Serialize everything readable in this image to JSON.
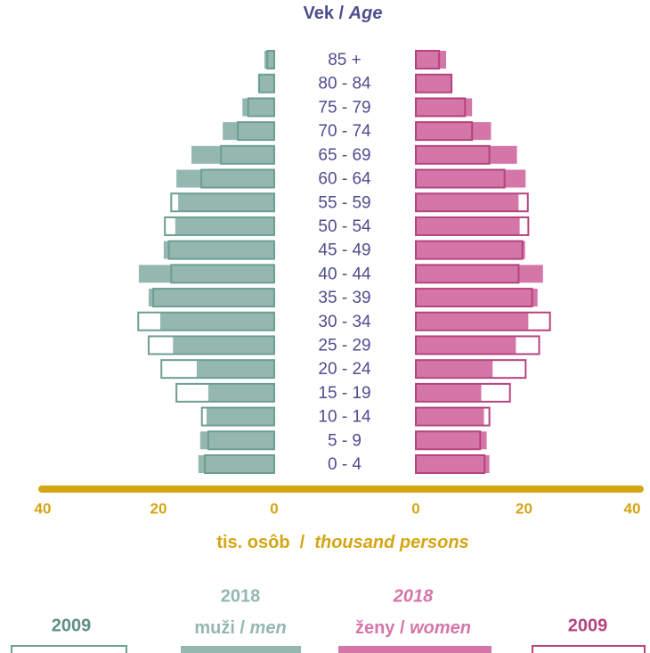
{
  "chart_data": {
    "type": "population_pyramid",
    "title": [
      "Vek / ",
      "Age"
    ],
    "categories": [
      "0 - 4",
      "5 - 9",
      "10 - 14",
      "15 - 19",
      "20 - 24",
      "25 - 29",
      "30 - 34",
      "35 - 39",
      "40 - 44",
      "45 - 49",
      "50 - 54",
      "55 - 59",
      "60 - 64",
      "65 - 69",
      "70 - 74",
      "75 - 79",
      "80 - 84",
      "85 +"
    ],
    "xlabel": [
      "tis. osôb  /  ",
      "thousand persons"
    ],
    "xlim": [
      0,
      40
    ],
    "xticks": [
      0,
      20,
      40
    ],
    "left": {
      "label": [
        "muži / ",
        "men"
      ],
      "series": [
        {
          "name": "2009",
          "color": "#6e9d92",
          "values": [
            12.0,
            11.4,
            12.5,
            16.9,
            19.5,
            21.7,
            23.5,
            20.9,
            17.8,
            18.2,
            18.9,
            17.8,
            12.6,
            9.2,
            6.3,
            4.5,
            2.6,
            1.2
          ]
        },
        {
          "name": "2018",
          "color": "#94b8b0",
          "values": [
            13.1,
            12.8,
            11.7,
            11.4,
            13.4,
            17.5,
            19.7,
            21.7,
            23.4,
            19.1,
            17.1,
            16.6,
            16.9,
            14.3,
            8.9,
            5.5,
            2.8,
            1.7
          ]
        }
      ]
    },
    "right": {
      "label": [
        "ženy / ",
        "women"
      ],
      "series": [
        {
          "name": "2009",
          "color": "#b5437f",
          "values": [
            12.7,
            11.9,
            13.6,
            17.4,
            20.3,
            22.8,
            24.8,
            21.5,
            19.0,
            19.7,
            20.8,
            20.7,
            16.4,
            13.6,
            10.4,
            9.1,
            6.6,
            4.3
          ]
        },
        {
          "name": "2018",
          "color": "#d576a8",
          "values": [
            13.6,
            13.1,
            12.6,
            12.1,
            14.2,
            18.5,
            20.8,
            22.5,
            23.5,
            20.2,
            19.2,
            19.0,
            20.3,
            18.7,
            13.9,
            10.4,
            6.6,
            5.6
          ]
        }
      ]
    }
  }
}
